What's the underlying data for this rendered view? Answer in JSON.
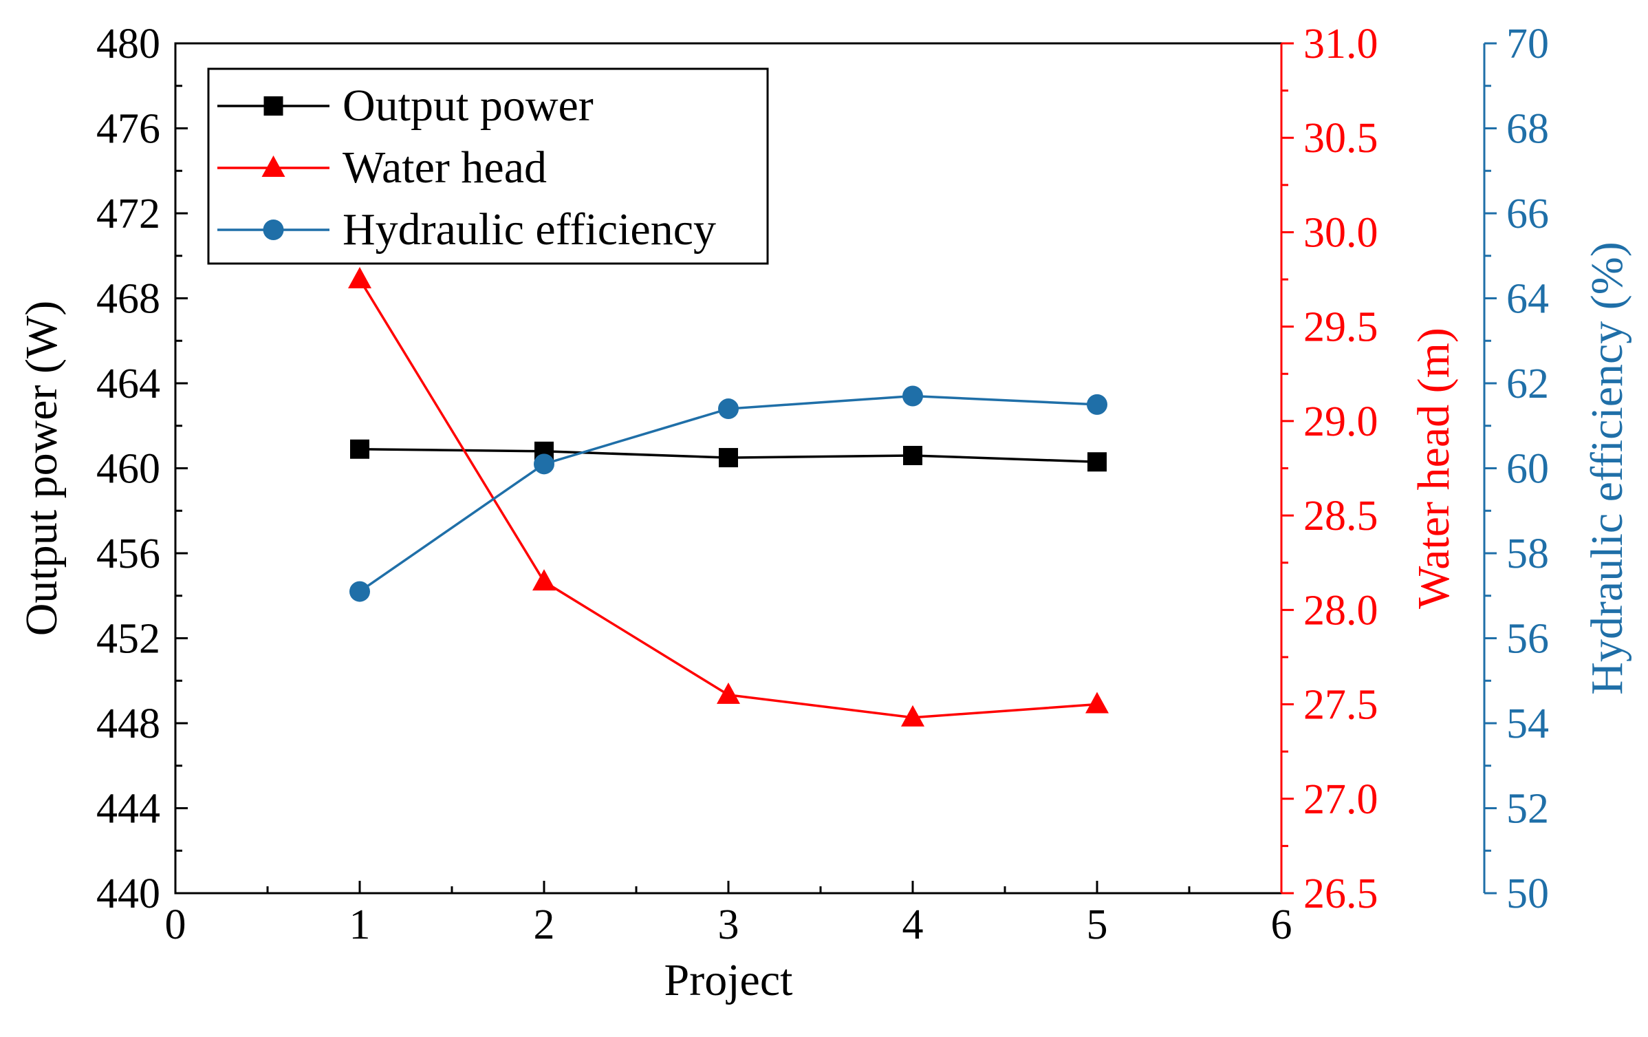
{
  "chart_data": {
    "type": "line",
    "xlabel": "Project",
    "x_ticks": [
      "0",
      "1",
      "2",
      "3",
      "4",
      "5",
      "6"
    ],
    "xlim": [
      0,
      6
    ],
    "x": [
      1,
      2,
      3,
      4,
      5
    ],
    "axes": {
      "left": {
        "label": "Output power (W)",
        "color": "#000000",
        "ylim": [
          440,
          480
        ],
        "ticks": [
          "440",
          "444",
          "448",
          "452",
          "456",
          "460",
          "464",
          "468",
          "472",
          "476",
          "480"
        ]
      },
      "right1": {
        "label": "Water head (m)",
        "color": "#ff0000",
        "ylim": [
          26.5,
          31.0
        ],
        "ticks": [
          "26.5",
          "27.0",
          "27.5",
          "28.0",
          "28.5",
          "29.0",
          "29.5",
          "30.0",
          "30.5",
          "31.0"
        ]
      },
      "right2": {
        "label": "Hydraulic efficiency (%)",
        "color": "#1f6fa8",
        "ylim": [
          50,
          70
        ],
        "ticks": [
          "50",
          "52",
          "54",
          "56",
          "58",
          "60",
          "62",
          "64",
          "66",
          "68",
          "70"
        ]
      }
    },
    "series": [
      {
        "name": "Output power",
        "axis": "left",
        "color": "#000000",
        "marker": "square",
        "values": [
          460.9,
          460.8,
          460.5,
          460.6,
          460.3
        ]
      },
      {
        "name": "Water head",
        "axis": "right1",
        "color": "#ff0000",
        "marker": "triangle",
        "values": [
          29.75,
          28.15,
          27.55,
          27.43,
          27.5
        ]
      },
      {
        "name": "Hydraulic efficiency",
        "axis": "right2",
        "color": "#1f6fa8",
        "marker": "circle",
        "values": [
          57.1,
          60.1,
          61.4,
          61.7,
          61.5
        ]
      }
    ],
    "legend": {
      "position": "top-left",
      "entries": [
        "Output power",
        "Water head",
        "Hydraulic efficiency"
      ]
    }
  }
}
